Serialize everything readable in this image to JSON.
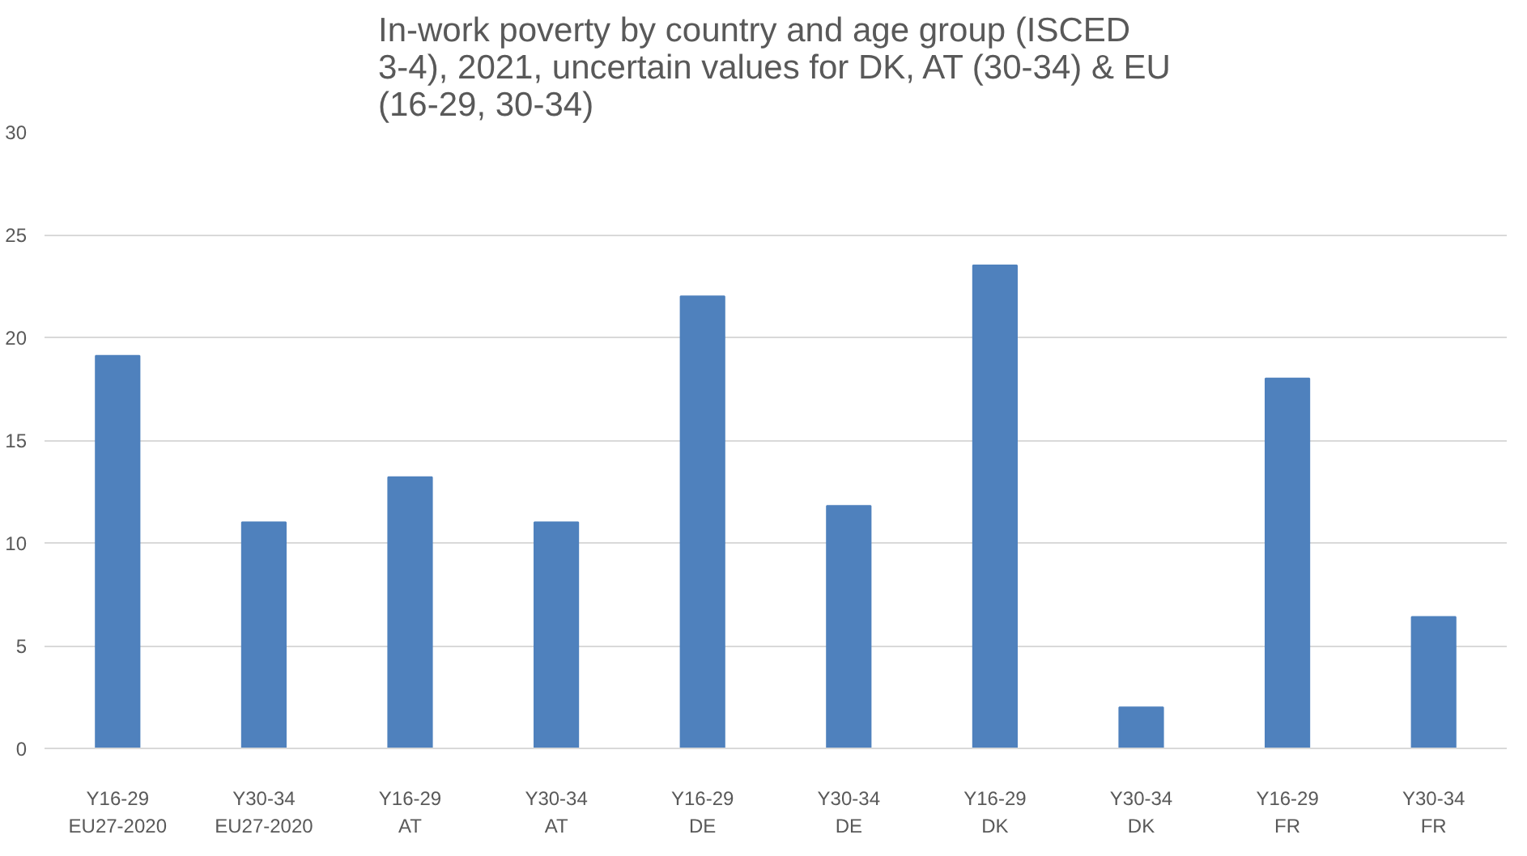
{
  "chart_data": {
    "type": "bar",
    "title": "In-work poverty by country and age group (ISCED 3-4), 2021, uncertain values for DK, AT (30-34) & EU (16-29, 30-34)",
    "categories": [
      "Y16-29\nEU27-2020",
      "Y30-34\nEU27-2020",
      "Y16-29\nAT",
      "Y30-34\nAT",
      "Y16-29\nDE",
      "Y30-34\nDE",
      "Y16-29\nDK",
      "Y30-34\nDK",
      "Y16-29\nFR",
      "Y30-34\nFR"
    ],
    "values": [
      19.1,
      11.0,
      13.2,
      11.0,
      22.0,
      11.8,
      23.5,
      2.0,
      18.0,
      6.4
    ],
    "color": "#4f81bd",
    "ylim": [
      0,
      30
    ],
    "yticks": [
      0,
      5,
      10,
      15,
      20,
      25,
      30
    ],
    "grid": "y"
  }
}
